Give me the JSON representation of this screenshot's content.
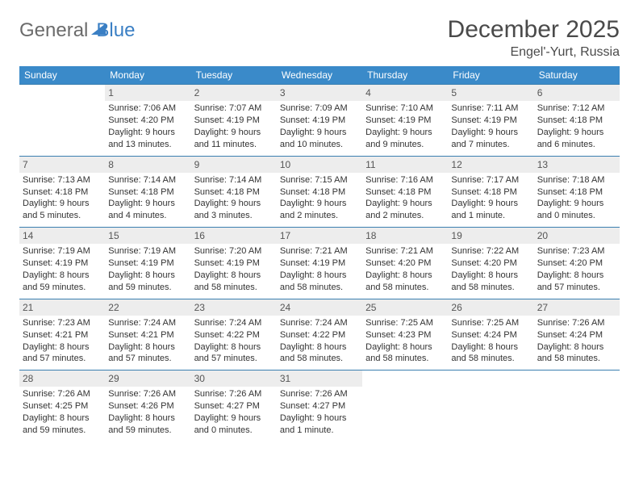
{
  "logo": {
    "part1": "General",
    "part2": "Blue"
  },
  "title": "December 2025",
  "location": "Engel'-Yurt, Russia",
  "day_headers": [
    "Sunday",
    "Monday",
    "Tuesday",
    "Wednesday",
    "Thursday",
    "Friday",
    "Saturday"
  ],
  "colors": {
    "header_bg": "#3a8ac9",
    "header_text": "#ffffff",
    "daynum_bg": "#ededed",
    "border": "#3a7fb0",
    "logo_gray": "#6b6b6b",
    "logo_blue": "#3a7fc4",
    "body_text": "#333333",
    "title_text": "#4a4a4a",
    "background": "#ffffff"
  },
  "typography": {
    "title_fontsize": 30,
    "location_fontsize": 16,
    "header_fontsize": 12,
    "cell_fontsize": 11,
    "logo_fontsize": 24
  },
  "layout": {
    "columns": 7,
    "rows": 5
  },
  "weeks": [
    [
      {
        "day": "",
        "sunrise": "",
        "sunset": "",
        "daylight": ""
      },
      {
        "day": "1",
        "sunrise": "Sunrise: 7:06 AM",
        "sunset": "Sunset: 4:20 PM",
        "daylight": "Daylight: 9 hours and 13 minutes."
      },
      {
        "day": "2",
        "sunrise": "Sunrise: 7:07 AM",
        "sunset": "Sunset: 4:19 PM",
        "daylight": "Daylight: 9 hours and 11 minutes."
      },
      {
        "day": "3",
        "sunrise": "Sunrise: 7:09 AM",
        "sunset": "Sunset: 4:19 PM",
        "daylight": "Daylight: 9 hours and 10 minutes."
      },
      {
        "day": "4",
        "sunrise": "Sunrise: 7:10 AM",
        "sunset": "Sunset: 4:19 PM",
        "daylight": "Daylight: 9 hours and 9 minutes."
      },
      {
        "day": "5",
        "sunrise": "Sunrise: 7:11 AM",
        "sunset": "Sunset: 4:19 PM",
        "daylight": "Daylight: 9 hours and 7 minutes."
      },
      {
        "day": "6",
        "sunrise": "Sunrise: 7:12 AM",
        "sunset": "Sunset: 4:18 PM",
        "daylight": "Daylight: 9 hours and 6 minutes."
      }
    ],
    [
      {
        "day": "7",
        "sunrise": "Sunrise: 7:13 AM",
        "sunset": "Sunset: 4:18 PM",
        "daylight": "Daylight: 9 hours and 5 minutes."
      },
      {
        "day": "8",
        "sunrise": "Sunrise: 7:14 AM",
        "sunset": "Sunset: 4:18 PM",
        "daylight": "Daylight: 9 hours and 4 minutes."
      },
      {
        "day": "9",
        "sunrise": "Sunrise: 7:14 AM",
        "sunset": "Sunset: 4:18 PM",
        "daylight": "Daylight: 9 hours and 3 minutes."
      },
      {
        "day": "10",
        "sunrise": "Sunrise: 7:15 AM",
        "sunset": "Sunset: 4:18 PM",
        "daylight": "Daylight: 9 hours and 2 minutes."
      },
      {
        "day": "11",
        "sunrise": "Sunrise: 7:16 AM",
        "sunset": "Sunset: 4:18 PM",
        "daylight": "Daylight: 9 hours and 2 minutes."
      },
      {
        "day": "12",
        "sunrise": "Sunrise: 7:17 AM",
        "sunset": "Sunset: 4:18 PM",
        "daylight": "Daylight: 9 hours and 1 minute."
      },
      {
        "day": "13",
        "sunrise": "Sunrise: 7:18 AM",
        "sunset": "Sunset: 4:18 PM",
        "daylight": "Daylight: 9 hours and 0 minutes."
      }
    ],
    [
      {
        "day": "14",
        "sunrise": "Sunrise: 7:19 AM",
        "sunset": "Sunset: 4:19 PM",
        "daylight": "Daylight: 8 hours and 59 minutes."
      },
      {
        "day": "15",
        "sunrise": "Sunrise: 7:19 AM",
        "sunset": "Sunset: 4:19 PM",
        "daylight": "Daylight: 8 hours and 59 minutes."
      },
      {
        "day": "16",
        "sunrise": "Sunrise: 7:20 AM",
        "sunset": "Sunset: 4:19 PM",
        "daylight": "Daylight: 8 hours and 58 minutes."
      },
      {
        "day": "17",
        "sunrise": "Sunrise: 7:21 AM",
        "sunset": "Sunset: 4:19 PM",
        "daylight": "Daylight: 8 hours and 58 minutes."
      },
      {
        "day": "18",
        "sunrise": "Sunrise: 7:21 AM",
        "sunset": "Sunset: 4:20 PM",
        "daylight": "Daylight: 8 hours and 58 minutes."
      },
      {
        "day": "19",
        "sunrise": "Sunrise: 7:22 AM",
        "sunset": "Sunset: 4:20 PM",
        "daylight": "Daylight: 8 hours and 58 minutes."
      },
      {
        "day": "20",
        "sunrise": "Sunrise: 7:23 AM",
        "sunset": "Sunset: 4:20 PM",
        "daylight": "Daylight: 8 hours and 57 minutes."
      }
    ],
    [
      {
        "day": "21",
        "sunrise": "Sunrise: 7:23 AM",
        "sunset": "Sunset: 4:21 PM",
        "daylight": "Daylight: 8 hours and 57 minutes."
      },
      {
        "day": "22",
        "sunrise": "Sunrise: 7:24 AM",
        "sunset": "Sunset: 4:21 PM",
        "daylight": "Daylight: 8 hours and 57 minutes."
      },
      {
        "day": "23",
        "sunrise": "Sunrise: 7:24 AM",
        "sunset": "Sunset: 4:22 PM",
        "daylight": "Daylight: 8 hours and 57 minutes."
      },
      {
        "day": "24",
        "sunrise": "Sunrise: 7:24 AM",
        "sunset": "Sunset: 4:22 PM",
        "daylight": "Daylight: 8 hours and 58 minutes."
      },
      {
        "day": "25",
        "sunrise": "Sunrise: 7:25 AM",
        "sunset": "Sunset: 4:23 PM",
        "daylight": "Daylight: 8 hours and 58 minutes."
      },
      {
        "day": "26",
        "sunrise": "Sunrise: 7:25 AM",
        "sunset": "Sunset: 4:24 PM",
        "daylight": "Daylight: 8 hours and 58 minutes."
      },
      {
        "day": "27",
        "sunrise": "Sunrise: 7:26 AM",
        "sunset": "Sunset: 4:24 PM",
        "daylight": "Daylight: 8 hours and 58 minutes."
      }
    ],
    [
      {
        "day": "28",
        "sunrise": "Sunrise: 7:26 AM",
        "sunset": "Sunset: 4:25 PM",
        "daylight": "Daylight: 8 hours and 59 minutes."
      },
      {
        "day": "29",
        "sunrise": "Sunrise: 7:26 AM",
        "sunset": "Sunset: 4:26 PM",
        "daylight": "Daylight: 8 hours and 59 minutes."
      },
      {
        "day": "30",
        "sunrise": "Sunrise: 7:26 AM",
        "sunset": "Sunset: 4:27 PM",
        "daylight": "Daylight: 9 hours and 0 minutes."
      },
      {
        "day": "31",
        "sunrise": "Sunrise: 7:26 AM",
        "sunset": "Sunset: 4:27 PM",
        "daylight": "Daylight: 9 hours and 1 minute."
      },
      {
        "day": "",
        "sunrise": "",
        "sunset": "",
        "daylight": ""
      },
      {
        "day": "",
        "sunrise": "",
        "sunset": "",
        "daylight": ""
      },
      {
        "day": "",
        "sunrise": "",
        "sunset": "",
        "daylight": ""
      }
    ]
  ]
}
